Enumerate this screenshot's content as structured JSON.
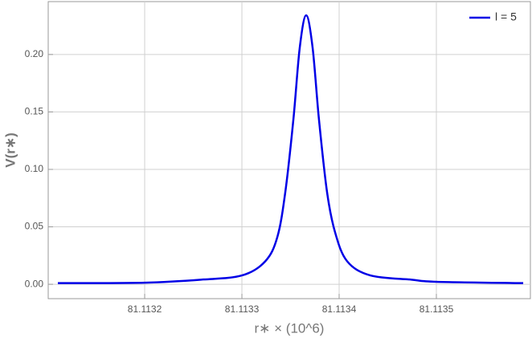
{
  "chart_data": {
    "type": "line",
    "xlabel": "r∗ × (10^6)",
    "ylabel": "V(r∗)",
    "x": [
      81.1131107,
      81.1132,
      81.1132579,
      81.1133,
      81.113324,
      81.1133364,
      81.1133446,
      81.1133529,
      81.1133595,
      81.1133661,
      81.1133727,
      81.1133793,
      81.1133876,
      81.1133959,
      81.1134083,
      81.1134322,
      81.1134744,
      81.1135,
      81.1135893
    ],
    "series": [
      {
        "name": "l = 5",
        "color": "#0000e6",
        "values": [
          0.001,
          0.0014,
          0.004,
          0.0077,
          0.02,
          0.041,
          0.08,
          0.143,
          0.206,
          0.234,
          0.206,
          0.143,
          0.08,
          0.045,
          0.02,
          0.0077,
          0.004,
          0.0022,
          0.001
        ]
      }
    ],
    "xlim": [
      81.1131008,
      81.1135967
    ],
    "ylim": [
      -0.0125,
      0.246
    ],
    "xticks": [
      81.1132,
      81.1133,
      81.1134,
      81.1135
    ],
    "yticks": [
      {
        "value": 0,
        "label": "0.00"
      },
      0.05,
      {
        "value": 0.1,
        "label": "0.10"
      },
      0.15,
      {
        "value": 0.2,
        "label": "0.20"
      }
    ],
    "grid": true,
    "legend": "top-right"
  }
}
